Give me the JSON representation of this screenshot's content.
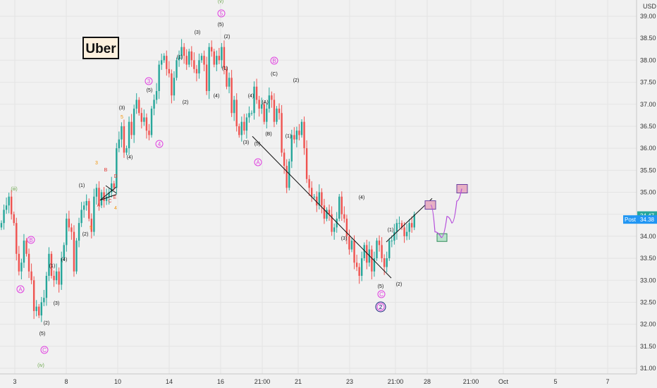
{
  "chart_data": {
    "type": "candlestick",
    "title": "Uber",
    "currency": "USD",
    "ylim": [
      30.85,
      39.3
    ],
    "ytick_labels": [
      "31.00",
      "31.50",
      "32.00",
      "32.50",
      "33.00",
      "33.50",
      "34.00",
      "34.50",
      "35.00",
      "35.50",
      "36.00",
      "36.50",
      "37.00",
      "37.50",
      "38.00",
      "38.50",
      "39.00"
    ],
    "xtick_labels": [
      "3",
      "8",
      "10",
      "14",
      "16",
      "21:00",
      "21",
      "23",
      "21:00",
      "28",
      "21:00",
      "Oct",
      "5",
      "7"
    ],
    "price_tags": [
      {
        "label": "",
        "value": "34.47",
        "color": "#26a69a"
      },
      {
        "label": "Post",
        "value": "34.38",
        "color": "#2196f3"
      }
    ],
    "colors": {
      "up": "#26a69a",
      "down": "#ef5350",
      "projection": "#b54ddb",
      "background": "#f1f1f1"
    },
    "candles_close": [
      34.3,
      34.6,
      34.7,
      34.9,
      34.5,
      34.3,
      33.6,
      33.2,
      33.4,
      33.9,
      33.6,
      33.2,
      33.0,
      32.3,
      32.4,
      32.2,
      32.5,
      32.6,
      33.1,
      33.6,
      33.1,
      33.0,
      33.2,
      32.9,
      33.5,
      33.8,
      34.4,
      34.2,
      34.1,
      33.2,
      33.9,
      34.3,
      34.6,
      34.7,
      34.8,
      34.4,
      34.1,
      34.9,
      35.1,
      34.7,
      35.0,
      34.8,
      34.9,
      35.0,
      35.2,
      35.1,
      36.0,
      36.2,
      36.5,
      35.9,
      36.0,
      36.6,
      36.3,
      36.9,
      37.1,
      36.8,
      36.6,
      36.7,
      36.4,
      36.3,
      36.9,
      37.1,
      37.3,
      37.9,
      38.0,
      38.1,
      37.8,
      37.7,
      37.2,
      37.6,
      38.0,
      38.1,
      38.3,
      38.1,
      37.9,
      38.2,
      38.0,
      37.8,
      37.7,
      38.0,
      38.1,
      37.9,
      37.3,
      38.3,
      38.2,
      37.9,
      38.1,
      38.0,
      38.3,
      37.8,
      37.4,
      37.6,
      36.8,
      37.1,
      36.5,
      36.3,
      36.6,
      36.4,
      36.7,
      36.8,
      36.8,
      37.4,
      37.1,
      36.9,
      37.0,
      36.6,
      36.9,
      37.2,
      37.1,
      36.6,
      36.9,
      36.8,
      35.9,
      35.6,
      35.1,
      35.7,
      36.3,
      36.2,
      36.4,
      36.3,
      36.6,
      36.0,
      35.3,
      35.1,
      34.9,
      34.9,
      34.7,
      35.0,
      34.7,
      34.4,
      34.6,
      34.5,
      34.1,
      34.2,
      34.4,
      34.9,
      34.5,
      34.4,
      34.0,
      33.7,
      33.9,
      33.4,
      33.3,
      33.1,
      33.5,
      33.8,
      33.4,
      33.7,
      33.2,
      33.5,
      33.9,
      33.8,
      33.5,
      33.3,
      33.5,
      33.9,
      33.9,
      34.1,
      34.3,
      34.3,
      34.2,
      34.0,
      34.1,
      34.3,
      34.2,
      34.5
    ],
    "trendlines": [
      {
        "from": [
          "36:00 pivot",
          36.27
        ],
        "to": [
          "wave (5) low",
          33.05
        ]
      },
      {
        "from": [
          "wave (1) low",
          33.87
        ],
        "to": [
          "wave (3) target",
          34.86
        ]
      }
    ],
    "target_boxes": [
      "wave (3) target 34.71",
      "wave (4) target 33.97",
      "wave (5) target 35.08"
    ],
    "projection_path": [
      34.71,
      34.1,
      33.97,
      34.45,
      34.3,
      34.8,
      35.08
    ],
    "wave_labels": [
      {
        "text": "(iii)",
        "style": "green"
      },
      {
        "text": "(iv)",
        "style": "green"
      },
      {
        "text": "(v)",
        "style": "green"
      },
      {
        "text": "A",
        "style": "magenta-circle"
      },
      {
        "text": "B",
        "style": "magenta-circle"
      },
      {
        "text": "C",
        "style": "magenta-circle"
      },
      {
        "text": "2",
        "style": "magenta-circle"
      },
      {
        "text": "3",
        "style": "magenta-circle"
      },
      {
        "text": "4",
        "style": "magenta-circle"
      },
      {
        "text": "5",
        "style": "magenta-circle"
      },
      {
        "text": "A",
        "style": "magenta-circle"
      },
      {
        "text": "B",
        "style": "magenta-circle"
      },
      {
        "text": "C",
        "style": "magenta-circle"
      },
      {
        "text": "2",
        "style": "navy-circle"
      },
      {
        "text": "(1)",
        "style": "black"
      },
      {
        "text": "(2)",
        "style": "black"
      },
      {
        "text": "(3)",
        "style": "black"
      },
      {
        "text": "(4)",
        "style": "black"
      },
      {
        "text": "(5)",
        "style": "black"
      },
      {
        "text": "(1)",
        "style": "black"
      },
      {
        "text": "(2)",
        "style": "black"
      },
      {
        "text": "(3)",
        "style": "black"
      },
      {
        "text": "(4)",
        "style": "black"
      },
      {
        "text": "(5)",
        "style": "black"
      },
      {
        "text": "(1)",
        "style": "black"
      },
      {
        "text": "(2)",
        "style": "black"
      },
      {
        "text": "(3)",
        "style": "black"
      },
      {
        "text": "(4)",
        "style": "black"
      },
      {
        "text": "(5)",
        "style": "black"
      },
      {
        "text": "(A)",
        "style": "black"
      },
      {
        "text": "(B)",
        "style": "black"
      },
      {
        "text": "(C)",
        "style": "black"
      },
      {
        "text": "(1)",
        "style": "black"
      },
      {
        "text": "(2)",
        "style": "black"
      },
      {
        "text": "(1)",
        "style": "black"
      },
      {
        "text": "(2)",
        "style": "black"
      },
      {
        "text": "(3)",
        "style": "black"
      },
      {
        "text": "(4)",
        "style": "black"
      },
      {
        "text": "(5)",
        "style": "black"
      },
      {
        "text": "(1)",
        "style": "black"
      },
      {
        "text": "(2)",
        "style": "black"
      },
      {
        "text": "(3)",
        "style": "black"
      },
      {
        "text": "(4)",
        "style": "black"
      },
      {
        "text": "(5)",
        "style": "black"
      },
      {
        "text": "3",
        "style": "orange"
      },
      {
        "text": "5",
        "style": "orange"
      },
      {
        "text": "4",
        "style": "orange"
      },
      {
        "text": "5",
        "style": "orange"
      },
      {
        "text": "A",
        "style": "red"
      },
      {
        "text": "B",
        "style": "red"
      },
      {
        "text": "C",
        "style": "red"
      },
      {
        "text": "D",
        "style": "red"
      },
      {
        "text": "E",
        "style": "red"
      }
    ]
  }
}
